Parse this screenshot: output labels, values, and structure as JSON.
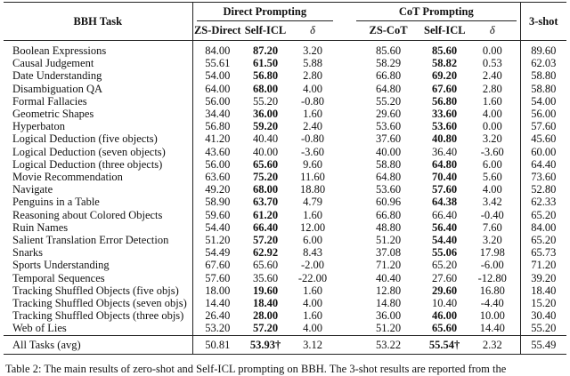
{
  "header": {
    "task": "BBH Task",
    "direct": "Direct Prompting",
    "cot": "CoT Prompting",
    "shot": "3-shot",
    "sub": [
      "ZS-Direct",
      "Self-ICL",
      "δ",
      "ZS-CoT",
      "Self-ICL",
      "δ"
    ]
  },
  "rows": [
    {
      "cells": [
        "Boolean Expressions",
        "84.00",
        "87.20",
        "3.20",
        "85.60",
        "85.60",
        "0.00",
        "89.60"
      ],
      "bold": [
        2,
        5
      ]
    },
    {
      "cells": [
        "Causal Judgement",
        "55.61",
        "61.50",
        "5.88",
        "58.29",
        "58.82",
        "0.53",
        "62.03"
      ],
      "bold": [
        2,
        5
      ]
    },
    {
      "cells": [
        "Date Understanding",
        "54.00",
        "56.80",
        "2.80",
        "66.80",
        "69.20",
        "2.40",
        "58.80"
      ],
      "bold": [
        2,
        5
      ]
    },
    {
      "cells": [
        "Disambiguation QA",
        "64.00",
        "68.00",
        "4.00",
        "64.80",
        "67.60",
        "2.80",
        "58.80"
      ],
      "bold": [
        2,
        5
      ]
    },
    {
      "cells": [
        "Formal Fallacies",
        "56.00",
        "55.20",
        "-0.80",
        "55.20",
        "56.80",
        "1.60",
        "54.00"
      ],
      "bold": [
        5
      ]
    },
    {
      "cells": [
        "Geometric Shapes",
        "34.40",
        "36.00",
        "1.60",
        "29.60",
        "33.60",
        "4.00",
        "56.00"
      ],
      "bold": [
        2,
        5
      ]
    },
    {
      "cells": [
        "Hyperbaton",
        "56.80",
        "59.20",
        "2.40",
        "53.60",
        "53.60",
        "0.00",
        "57.60"
      ],
      "bold": [
        2,
        5
      ]
    },
    {
      "cells": [
        "Logical Deduction (five objects)",
        "41.20",
        "40.40",
        "-0.80",
        "37.60",
        "40.80",
        "3.20",
        "45.60"
      ],
      "bold": [
        5
      ]
    },
    {
      "cells": [
        "Logical Deduction (seven objects)",
        "43.60",
        "40.00",
        "-3.60",
        "40.00",
        "36.40",
        "-3.60",
        "60.00"
      ],
      "bold": []
    },
    {
      "cells": [
        "Logical Deduction (three objects)",
        "56.00",
        "65.60",
        "9.60",
        "58.80",
        "64.80",
        "6.00",
        "64.40"
      ],
      "bold": [
        2,
        5
      ]
    },
    {
      "cells": [
        "Movie Recommendation",
        "63.60",
        "75.20",
        "11.60",
        "64.80",
        "70.40",
        "5.60",
        "73.60"
      ],
      "bold": [
        2,
        5
      ]
    },
    {
      "cells": [
        "Navigate",
        "49.20",
        "68.00",
        "18.80",
        "53.60",
        "57.60",
        "4.00",
        "52.80"
      ],
      "bold": [
        2,
        5
      ]
    },
    {
      "cells": [
        "Penguins in a Table",
        "58.90",
        "63.70",
        "4.79",
        "60.96",
        "64.38",
        "3.42",
        "62.33"
      ],
      "bold": [
        2,
        5
      ]
    },
    {
      "cells": [
        "Reasoning about Colored Objects",
        "59.60",
        "61.20",
        "1.60",
        "66.80",
        "66.40",
        "-0.40",
        "65.20"
      ],
      "bold": [
        2
      ]
    },
    {
      "cells": [
        "Ruin Names",
        "54.40",
        "66.40",
        "12.00",
        "48.80",
        "56.40",
        "7.60",
        "84.00"
      ],
      "bold": [
        2,
        5
      ]
    },
    {
      "cells": [
        "Salient Translation Error Detection",
        "51.20",
        "57.20",
        "6.00",
        "51.20",
        "54.40",
        "3.20",
        "65.20"
      ],
      "bold": [
        2,
        5
      ]
    },
    {
      "cells": [
        "Snarks",
        "54.49",
        "62.92",
        "8.43",
        "37.08",
        "55.06",
        "17.98",
        "65.73"
      ],
      "bold": [
        2,
        5
      ]
    },
    {
      "cells": [
        "Sports Understanding",
        "67.60",
        "65.60",
        "-2.00",
        "71.20",
        "65.20",
        "-6.00",
        "71.20"
      ],
      "bold": []
    },
    {
      "cells": [
        "Temporal Sequences",
        "57.60",
        "35.60",
        "-22.00",
        "40.40",
        "27.60",
        "-12.80",
        "39.20"
      ],
      "bold": []
    },
    {
      "cells": [
        "Tracking Shuffled Objects (five objs)",
        "18.00",
        "19.60",
        "1.60",
        "12.80",
        "29.60",
        "16.80",
        "18.40"
      ],
      "bold": [
        2,
        5
      ]
    },
    {
      "cells": [
        "Tracking Shuffled Objects (seven objs)",
        "14.40",
        "18.40",
        "4.00",
        "14.80",
        "10.40",
        "-4.40",
        "15.20"
      ],
      "bold": [
        2
      ]
    },
    {
      "cells": [
        "Tracking Shuffled Objects (three objs)",
        "26.40",
        "28.00",
        "1.60",
        "36.00",
        "46.00",
        "10.00",
        "30.40"
      ],
      "bold": [
        2,
        5
      ]
    },
    {
      "cells": [
        "Web of Lies",
        "53.20",
        "57.20",
        "4.00",
        "51.20",
        "65.60",
        "14.40",
        "55.20"
      ],
      "bold": [
        2,
        5
      ]
    }
  ],
  "summary": {
    "cells": [
      "All Tasks (avg)",
      "50.81",
      "53.93†",
      "3.12",
      "53.22",
      "55.54†",
      "2.32",
      "55.49"
    ],
    "bold": [
      2,
      5
    ]
  },
  "caption": "Table 2: The main results of zero-shot and Self-ICL prompting on BBH. The 3-shot results are reported from the"
}
